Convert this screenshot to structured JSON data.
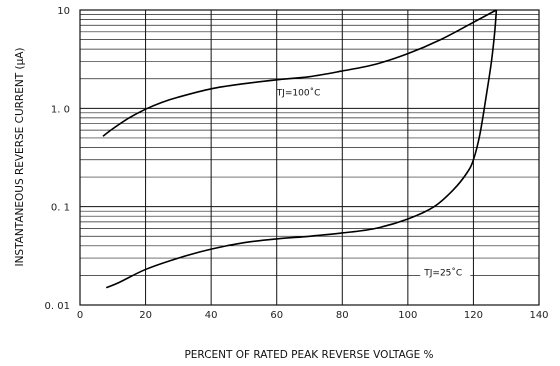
{
  "chart_data": {
    "type": "line",
    "xlabel": "PERCENT OF RATED PEAK REVERSE VOLTAGE %",
    "ylabel": "INSTANTANEOUS REVERSE CURRENT  (μA)",
    "xlim": [
      0,
      140
    ],
    "ylim": [
      0.01,
      10
    ],
    "yscale": "log",
    "grid": true,
    "x_ticks": [
      "0",
      "20",
      "40",
      "60",
      "80",
      "100",
      "120",
      "140"
    ],
    "y_ticks": [
      "0. 01",
      "0. 1",
      "1. 0",
      "10"
    ],
    "series": [
      {
        "name": "TJ=100˚C",
        "x": [
          7,
          10,
          15,
          20,
          25,
          30,
          40,
          50,
          60,
          70,
          80,
          90,
          100,
          110,
          120,
          127
        ],
        "y": [
          0.52,
          0.62,
          0.8,
          0.98,
          1.15,
          1.3,
          1.58,
          1.78,
          1.95,
          2.1,
          2.4,
          2.8,
          3.6,
          5.0,
          7.5,
          10.0
        ]
      },
      {
        "name": "TJ=25˚C",
        "x": [
          8,
          12,
          20,
          30,
          40,
          50,
          60,
          70,
          80,
          90,
          100,
          108,
          114,
          118,
          120,
          122,
          124,
          125.5,
          126.5,
          127
        ],
        "y": [
          0.015,
          0.017,
          0.023,
          0.03,
          0.037,
          0.043,
          0.047,
          0.05,
          0.054,
          0.06,
          0.075,
          0.1,
          0.15,
          0.22,
          0.3,
          0.55,
          1.4,
          3.0,
          6.0,
          10.0
        ]
      }
    ]
  }
}
